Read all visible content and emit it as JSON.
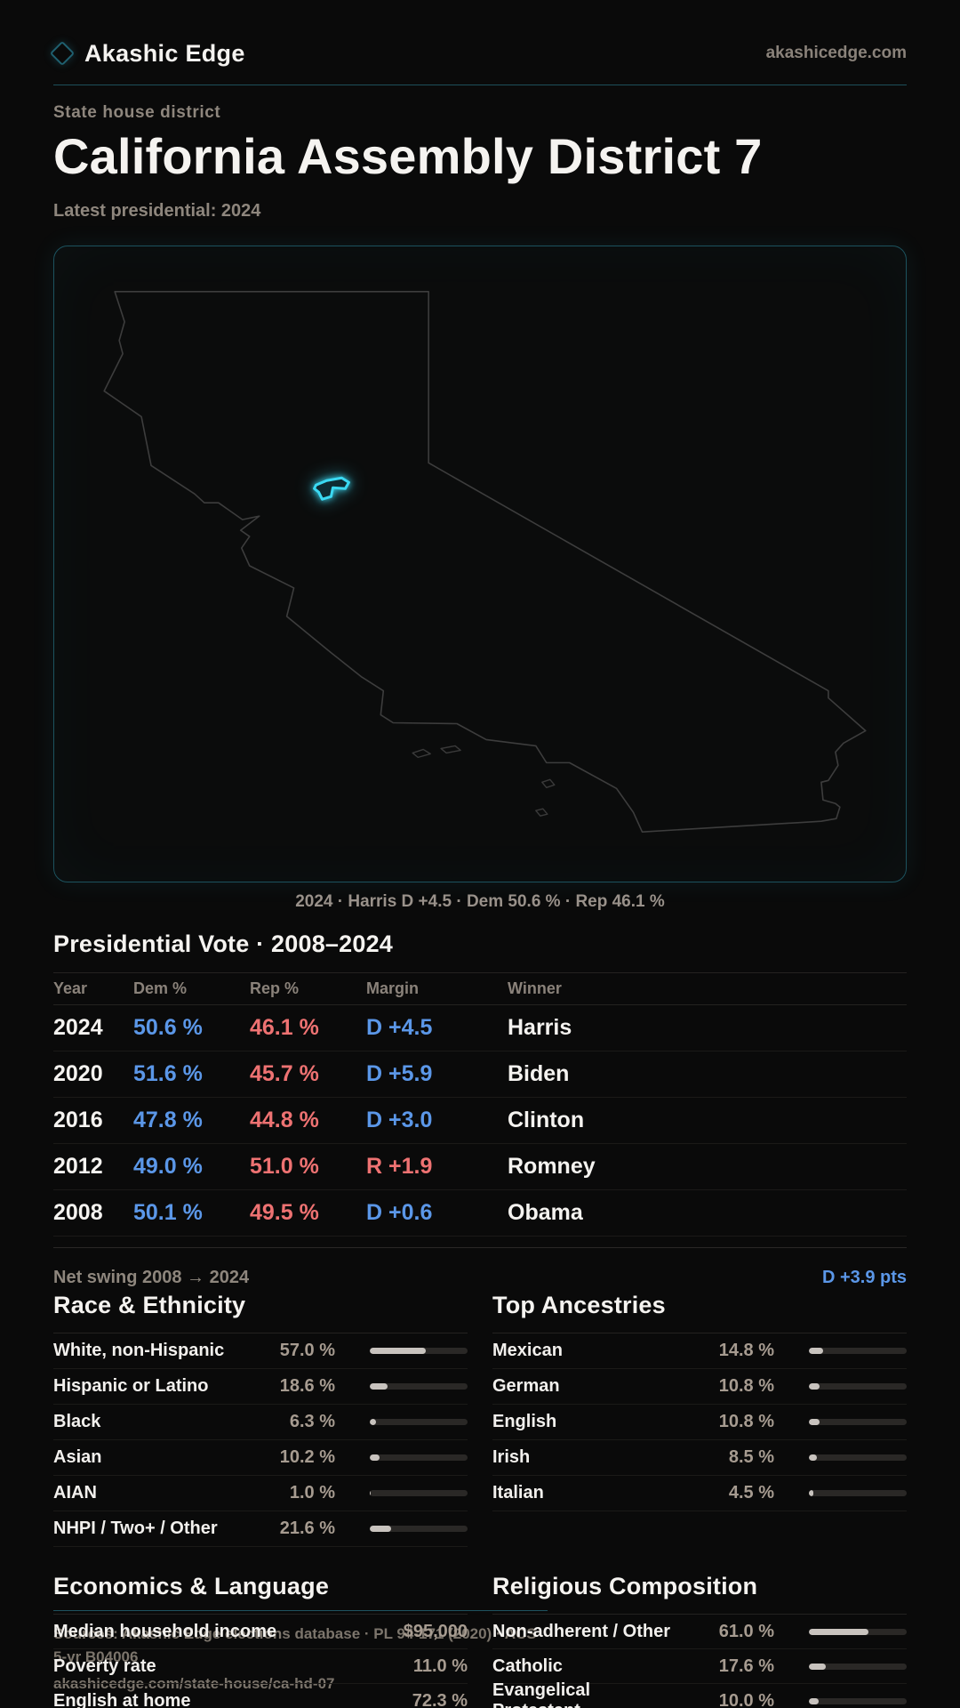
{
  "brand": {
    "logo_text": "Akashic Edge",
    "site_url": "akashicedge.com"
  },
  "hero": {
    "eyebrow": "State house district",
    "title": "California Assembly District 7",
    "latest_line": "Latest presidential: 2024"
  },
  "map": {
    "caption": "2024 · Harris D +4.5 · Dem 50.6 % · Rep 46.1 %",
    "state_outline": "california-outline",
    "highlight": "district-7-shape"
  },
  "presidential": {
    "title": "Presidential Vote · 2008–2024",
    "columns": [
      "Year",
      "Dem %",
      "Rep %",
      "Margin",
      "Winner"
    ],
    "rows": [
      {
        "year": "2024",
        "dem": "50.6 %",
        "rep": "46.1 %",
        "margin": "D +4.5",
        "margin_party": "D",
        "winner": "Harris"
      },
      {
        "year": "2020",
        "dem": "51.6 %",
        "rep": "45.7 %",
        "margin": "D +5.9",
        "margin_party": "D",
        "winner": "Biden"
      },
      {
        "year": "2016",
        "dem": "47.8 %",
        "rep": "44.8 %",
        "margin": "D +3.0",
        "margin_party": "D",
        "winner": "Clinton"
      },
      {
        "year": "2012",
        "dem": "49.0 %",
        "rep": "51.0 %",
        "margin": "R +1.9",
        "margin_party": "R",
        "winner": "Romney"
      },
      {
        "year": "2008",
        "dem": "50.1 %",
        "rep": "49.5 %",
        "margin": "D +0.6",
        "margin_party": "D",
        "winner": "Obama"
      }
    ],
    "net_swing_label": "Net swing 2008 → 2024",
    "net_swing_value": "D +3.9 pts"
  },
  "race": {
    "title": "Race & Ethnicity",
    "rows": [
      {
        "label": "White, non-Hispanic",
        "value": "57.0 %",
        "pct": 57.0
      },
      {
        "label": "Hispanic or Latino",
        "value": "18.6 %",
        "pct": 18.6
      },
      {
        "label": "Black",
        "value": "6.3 %",
        "pct": 6.3
      },
      {
        "label": "Asian",
        "value": "10.2 %",
        "pct": 10.2
      },
      {
        "label": "AIAN",
        "value": "1.0 %",
        "pct": 1.0
      },
      {
        "label": "NHPI / Two+ / Other",
        "value": "21.6 %",
        "pct": 21.6
      }
    ]
  },
  "ancestries": {
    "title": "Top Ancestries",
    "rows": [
      {
        "label": "Mexican",
        "value": "14.8 %",
        "pct": 14.8
      },
      {
        "label": "German",
        "value": "10.8 %",
        "pct": 10.8
      },
      {
        "label": "English",
        "value": "10.8 %",
        "pct": 10.8
      },
      {
        "label": "Irish",
        "value": "8.5 %",
        "pct": 8.5
      },
      {
        "label": "Italian",
        "value": "4.5 %",
        "pct": 4.5
      }
    ]
  },
  "economics": {
    "title": "Economics & Language",
    "rows": [
      {
        "label": "Median household income",
        "value": "$95,000"
      },
      {
        "label": "Poverty rate",
        "value": "11.0 %"
      },
      {
        "label": "English at home",
        "value": "72.3 %"
      }
    ]
  },
  "religion": {
    "title": "Religious Composition",
    "rows": [
      {
        "label": "Non-adherent / Other",
        "value": "61.0 %",
        "pct": 61.0
      },
      {
        "label": "Catholic",
        "value": "17.6 %",
        "pct": 17.6
      },
      {
        "label": "Evangelical Protestant",
        "value": "10.0 %",
        "pct": 10.0
      }
    ]
  },
  "footer": {
    "source_line": "Sources: Akashic Edge elections database · PL 94-171 (2020) · ACS 5-yr B04006",
    "url": "akashicedge.com/state-house/ca-hd-07"
  },
  "colors": {
    "background": "#0a0a0a",
    "accent_teal": "#1d4f5a",
    "district_cyan": "#3bd9f3",
    "dem_blue": "#5b97e8",
    "rep_red": "#ee7272",
    "bar_fill": "#c8c3be",
    "muted_text": "#8e867d",
    "value_text": "#a69b90"
  }
}
